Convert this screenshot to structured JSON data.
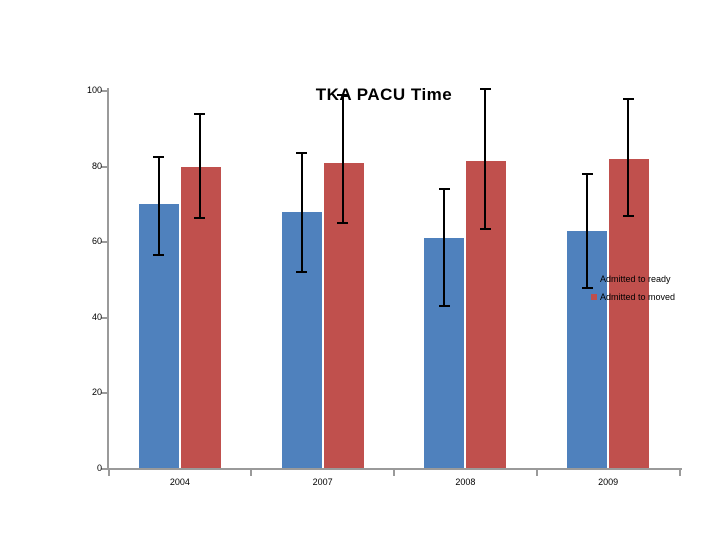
{
  "chart_data": {
    "type": "bar",
    "title": "TKA PACU Time",
    "categories": [
      "2004",
      "2007",
      "2008",
      "2009"
    ],
    "series": [
      {
        "name": "Admitted to ready",
        "color": "#4F81BD",
        "values": [
          70,
          68,
          61,
          63
        ],
        "error_low": [
          56.5,
          52,
          43,
          48
        ],
        "error_high": [
          82.5,
          83.5,
          74,
          78
        ]
      },
      {
        "name": "Admitted to moved",
        "color": "#C0504D",
        "values": [
          80,
          81,
          81.5,
          82
        ],
        "error_low": [
          66.5,
          65,
          63.5,
          67
        ],
        "error_high": [
          94,
          99,
          100.5,
          98
        ]
      }
    ],
    "ylim": [
      0,
      100
    ],
    "yticks": [
      0,
      20,
      40,
      60,
      80,
      100
    ],
    "xlabel": "",
    "ylabel": "",
    "grid": false,
    "legend_position": "right-middle",
    "axis_color": "#9A9A9A",
    "error_bar_color": "#000000",
    "text_color": "#000000"
  }
}
